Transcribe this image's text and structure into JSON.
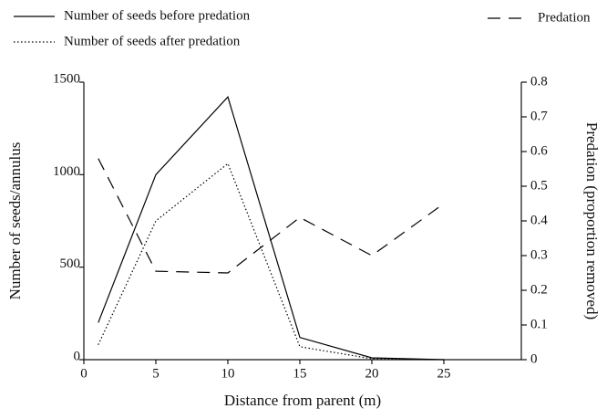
{
  "chart_data": {
    "type": "line",
    "x": [
      1,
      5,
      10,
      15,
      20,
      25
    ],
    "xlabel": "Distance from parent (m)",
    "ylabel": "Number of seeds/annulus",
    "y2label": "Predation (proportion removed)",
    "xlim": [
      0,
      30
    ],
    "xticks": [
      0,
      5,
      10,
      15,
      20,
      25
    ],
    "ylim": [
      0,
      1500
    ],
    "yticks": [
      0,
      500,
      1000,
      1500
    ],
    "y2lim": [
      0,
      0.8
    ],
    "y2ticks": [
      0,
      0.1,
      0.2,
      0.3,
      0.4,
      0.5,
      0.6,
      0.7,
      0.8
    ],
    "series": [
      {
        "name": "Number of seeds before predation",
        "color": "#000000",
        "dash": "solid",
        "values": [
          200,
          1000,
          1420,
          120,
          10,
          0
        ]
      },
      {
        "name": "Number of seeds after predation",
        "color": "#000000",
        "dash": "dotted",
        "values": [
          80,
          750,
          1060,
          70,
          5,
          0
        ]
      },
      {
        "name": "Predation",
        "color": "#000000",
        "dash": "dashed",
        "axis": "y2",
        "values": [
          0.58,
          0.255,
          0.25,
          0.41,
          0.3,
          0.45
        ]
      }
    ]
  }
}
